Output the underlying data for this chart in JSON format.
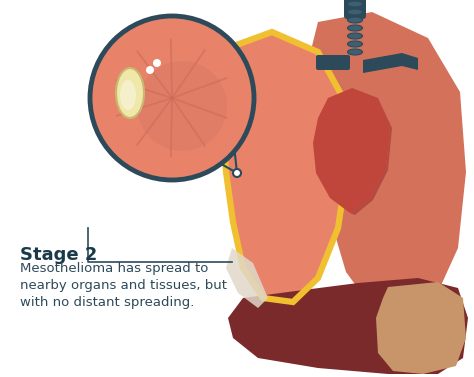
{
  "title": "Stage 2",
  "subtitle_lines": [
    "Mesothelioma has spread to",
    "nearby organs and tissues, but",
    "with no distant spreading."
  ],
  "title_color": "#1a3a4a",
  "subtitle_color": "#2d4a5a",
  "bg_color": "#ffffff",
  "title_fontsize": 13,
  "subtitle_fontsize": 9.5,
  "lung_left_color": "#e8836a",
  "lung_right_color": "#d4715a",
  "heart_color": "#c0453a",
  "liver_color": "#7a2a2a",
  "liver_light_color": "#c8956a",
  "pleura_color": "#f0c030",
  "zoom_circle_bg": "#e8836a",
  "zoom_circle_border": "#2d4a5a",
  "trachea_color": "#2d4a5a",
  "line_color": "#2d4a5a",
  "tumor_color": "#f0e8a8",
  "tumor_accent": "#c8b870"
}
